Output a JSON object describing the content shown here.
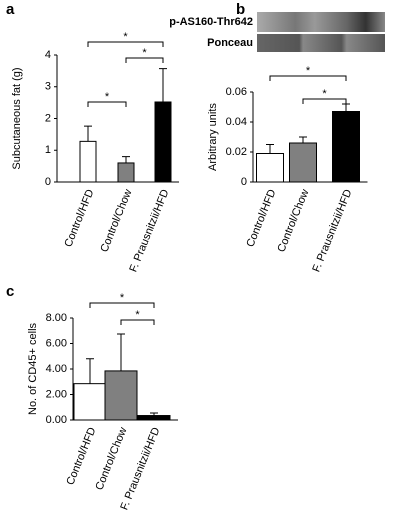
{
  "panel_labels": [
    "a",
    "b",
    "c"
  ],
  "blot": {
    "labels": [
      "p-AS160-Thr642",
      "Ponceau"
    ]
  },
  "chart_data": [
    {
      "type": "bar",
      "ylabel": "Subcutaneous fat (g)",
      "categories": [
        "Control/HFD",
        "Control/Chow",
        "F. Prausnitzii/HFD"
      ],
      "values": [
        1.28,
        0.6,
        2.52
      ],
      "errors": [
        0.48,
        0.2,
        1.05
      ],
      "colors": [
        "#ffffff",
        "#808080",
        "#000000"
      ],
      "ylim": [
        0,
        4
      ],
      "yticks": [
        0,
        1,
        2,
        3,
        4
      ],
      "annotations": [
        {
          "text": "*",
          "from": 0,
          "to": 2
        },
        {
          "text": "*",
          "from": 1,
          "to": 2
        },
        {
          "text": "*",
          "from": 0,
          "to": 1
        }
      ]
    },
    {
      "type": "bar",
      "ylabel": "Arbitrary units",
      "categories": [
        "Control/HFD",
        "Control/Chow",
        "F. Prausnitzii/HFD"
      ],
      "values": [
        0.019,
        0.026,
        0.047
      ],
      "errors": [
        0.006,
        0.004,
        0.005
      ],
      "colors": [
        "#ffffff",
        "#808080",
        "#000000"
      ],
      "ylim": [
        0,
        0.06
      ],
      "yticks": [
        0,
        0.02,
        0.04,
        0.06
      ],
      "annotations": [
        {
          "text": "*",
          "from": 0,
          "to": 2
        },
        {
          "text": "*",
          "from": 1,
          "to": 2
        }
      ]
    },
    {
      "type": "bar",
      "ylabel": "No. of CD45+ cells",
      "categories": [
        "Control/HFD",
        "Control/Chow",
        "F. Prausnitzii/HFD"
      ],
      "values": [
        2.85,
        3.85,
        0.35
      ],
      "errors": [
        1.95,
        2.9,
        0.2
      ],
      "colors": [
        "#ffffff",
        "#808080",
        "#000000"
      ],
      "ylim": [
        0,
        8
      ],
      "yticks": [
        {
          "value": 0,
          "label": "0.00"
        },
        {
          "value": 2,
          "label": "2.00"
        },
        {
          "value": 4,
          "label": "4.00"
        },
        {
          "value": 6,
          "label": "6.00"
        },
        {
          "value": 8,
          "label": "8.00"
        }
      ],
      "annotations": [
        {
          "text": "*",
          "from": 0,
          "to": 2
        },
        {
          "text": "*",
          "from": 1,
          "to": 2
        }
      ]
    }
  ]
}
